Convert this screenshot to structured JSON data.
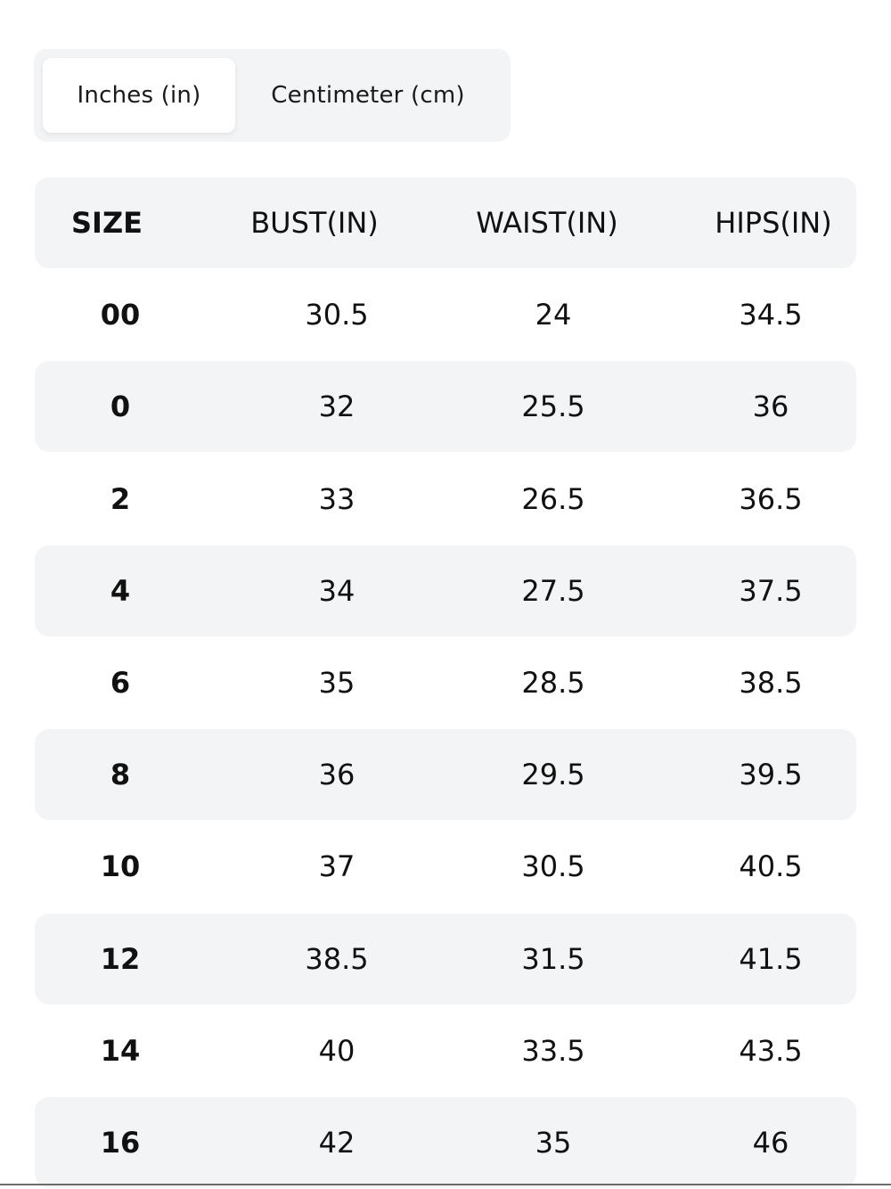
{
  "unit_toggle": {
    "options": [
      {
        "label": "Inches (in)",
        "selected": true
      },
      {
        "label": "Centimeter (cm)",
        "selected": false
      }
    ]
  },
  "table": {
    "headers": [
      "SIZE",
      "BUST(IN)",
      "WAIST(IN)",
      "HIPS(IN)"
    ],
    "rows": [
      {
        "size": "00",
        "bust": "30.5",
        "waist": "24",
        "hips": "34.5"
      },
      {
        "size": "0",
        "bust": "32",
        "waist": "25.5",
        "hips": "36"
      },
      {
        "size": "2",
        "bust": "33",
        "waist": "26.5",
        "hips": "36.5"
      },
      {
        "size": "4",
        "bust": "34",
        "waist": "27.5",
        "hips": "37.5"
      },
      {
        "size": "6",
        "bust": "35",
        "waist": "28.5",
        "hips": "38.5"
      },
      {
        "size": "8",
        "bust": "36",
        "waist": "29.5",
        "hips": "39.5"
      },
      {
        "size": "10",
        "bust": "37",
        "waist": "30.5",
        "hips": "40.5"
      },
      {
        "size": "12",
        "bust": "38.5",
        "waist": "31.5",
        "hips": "41.5"
      },
      {
        "size": "14",
        "bust": "40",
        "waist": "33.5",
        "hips": "43.5"
      },
      {
        "size": "16",
        "bust": "42",
        "waist": "35",
        "hips": "46"
      }
    ]
  },
  "colors": {
    "row_shade": "#f3f4f6",
    "selected_tab": "#ffffff",
    "text": "#111111"
  }
}
